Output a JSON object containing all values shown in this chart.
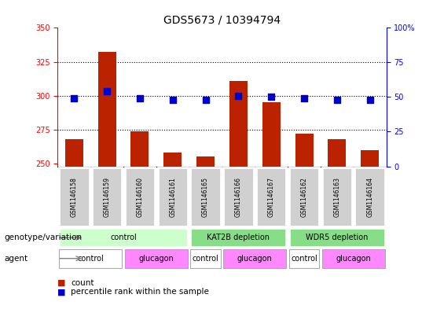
{
  "title": "GDS5673 / 10394794",
  "samples": [
    "GSM1146158",
    "GSM1146159",
    "GSM1146160",
    "GSM1146161",
    "GSM1146165",
    "GSM1146166",
    "GSM1146167",
    "GSM1146162",
    "GSM1146163",
    "GSM1146164"
  ],
  "counts": [
    268,
    332,
    274,
    258,
    255,
    311,
    295,
    272,
    268,
    260
  ],
  "percentiles": [
    49,
    54,
    49,
    48,
    48,
    51,
    50,
    49,
    48,
    48
  ],
  "ylim_left": [
    248,
    350
  ],
  "ylim_right": [
    0,
    100
  ],
  "yticks_left": [
    250,
    275,
    300,
    325,
    350
  ],
  "yticks_right": [
    0,
    25,
    50,
    75,
    100
  ],
  "bar_color": "#BB2200",
  "dot_color": "#0000CC",
  "dot_size": 28,
  "bar_width": 0.55,
  "genotype_groups": [
    {
      "label": "control",
      "start": 0,
      "end": 4,
      "color": "#CCFFCC"
    },
    {
      "label": "KAT2B depletion",
      "start": 4,
      "end": 7,
      "color": "#88DD88"
    },
    {
      "label": "WDR5 depletion",
      "start": 7,
      "end": 10,
      "color": "#88DD88"
    }
  ],
  "agent_groups": [
    {
      "label": "control",
      "start": 0,
      "end": 2,
      "color": "#FFFFFF"
    },
    {
      "label": "glucagon",
      "start": 2,
      "end": 4,
      "color": "#FF88FF"
    },
    {
      "label": "control",
      "start": 4,
      "end": 5,
      "color": "#FFFFFF"
    },
    {
      "label": "glucagon",
      "start": 5,
      "end": 7,
      "color": "#FF88FF"
    },
    {
      "label": "control",
      "start": 7,
      "end": 8,
      "color": "#FFFFFF"
    },
    {
      "label": "glucagon",
      "start": 8,
      "end": 10,
      "color": "#FF88FF"
    }
  ],
  "legend_count_color": "#BB2200",
  "legend_dot_color": "#0000CC",
  "genotype_label": "genotype/variation",
  "agent_label": "agent",
  "grid_dotted_yticks": [
    275,
    300,
    325
  ],
  "right_axis_label_suffix": "%"
}
